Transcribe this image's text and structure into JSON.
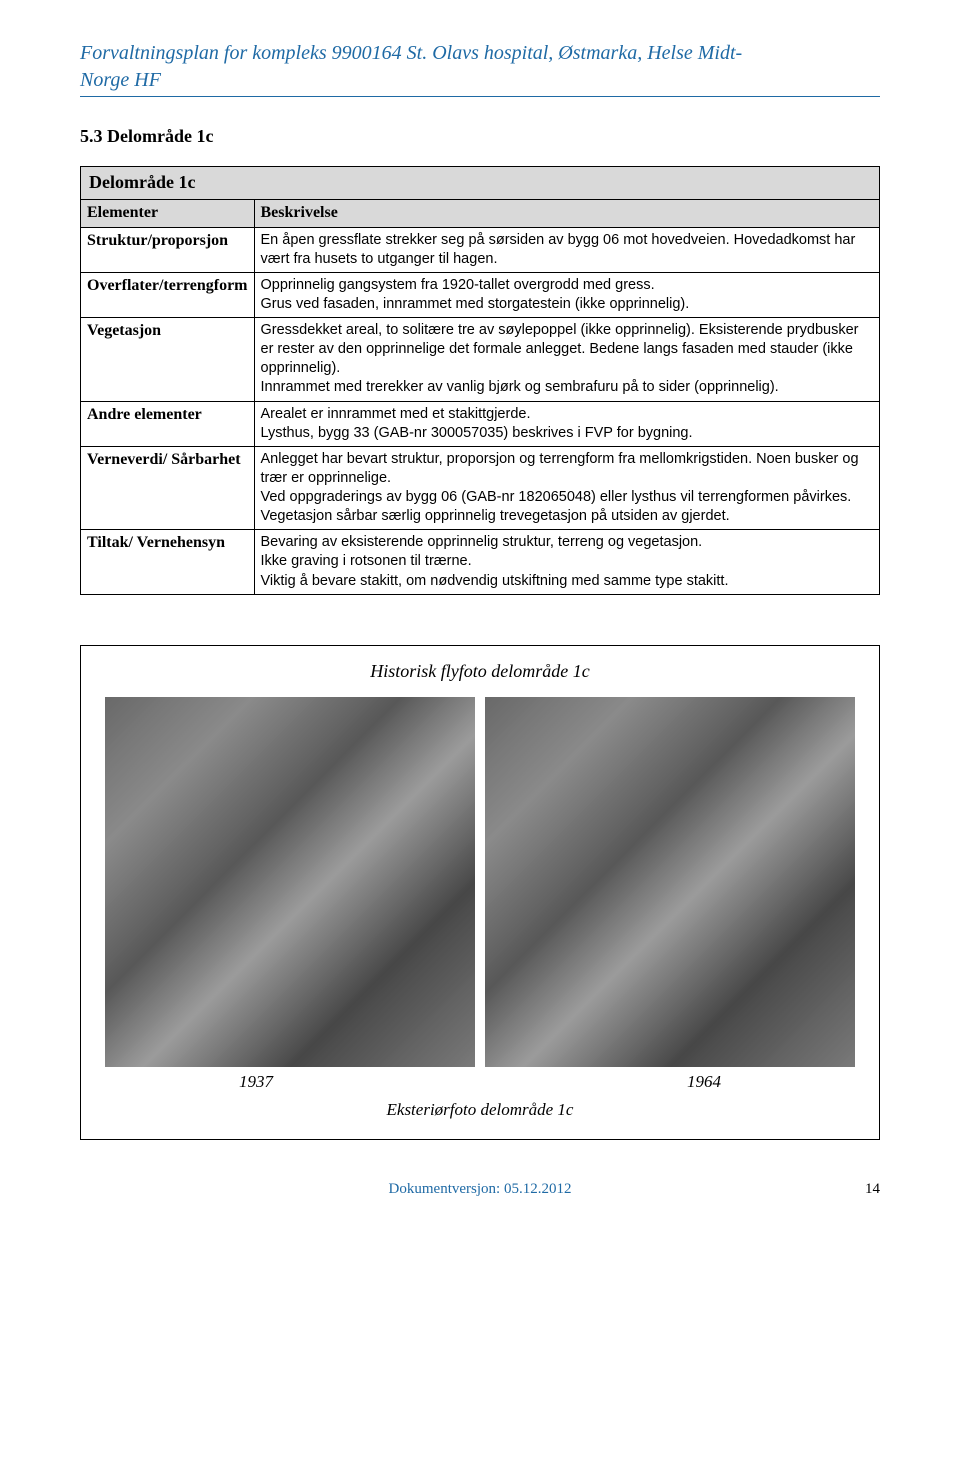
{
  "header": {
    "title_line1": "Forvaltningsplan for kompleks 9900164 St. Olavs hospital, Østmarka, Helse Midt-",
    "title_line2": "Norge HF"
  },
  "section": {
    "number_title": "5.3 Delområde 1c",
    "sub_title": "Delområde 1c"
  },
  "table": {
    "header_left": "Elementer",
    "header_right": "Beskrivelse",
    "rows": [
      {
        "label": "Struktur/proporsjon",
        "desc": "En åpen gressflate strekker seg på sørsiden av bygg 06 mot hovedveien. Hovedadkomst har vært fra husets to utganger til hagen."
      },
      {
        "label": "Overflater/terrengform",
        "desc": "Opprinnelig gangsystem fra 1920-tallet overgrodd med gress.\nGrus ved fasaden, innrammet med storgatestein (ikke opprinnelig)."
      },
      {
        "label": "Vegetasjon",
        "desc": "Gressdekket areal, to solitære tre av søylepoppel (ikke opprinnelig). Eksisterende prydbusker er rester av den opprinnelige det formale anlegget. Bedene langs fasaden med stauder (ikke opprinnelig).\nInnrammet med trerekker av vanlig bjørk og sembrafuru på to sider (opprinnelig)."
      },
      {
        "label": "Andre elementer",
        "desc": "Arealet er innrammet med et stakittgjerde.\nLysthus, bygg 33 (GAB-nr 300057035) beskrives i FVP for bygning."
      }
    ],
    "rows2": [
      {
        "label": "Verneverdi/ Sårbarhet",
        "desc": "Anlegget har bevart struktur, proporsjon og terrengform fra mellomkrigstiden. Noen busker og trær er opprinnelige.\nVed oppgraderings av bygg 06 (GAB-nr 182065048) eller lysthus vil terrengformen påvirkes. Vegetasjon sårbar særlig opprinnelig trevegetasjon på utsiden av gjerdet."
      },
      {
        "label": "Tiltak/ Vernehensyn",
        "desc": "Bevaring av eksisterende opprinnelig struktur, terreng og vegetasjon.\nIkke graving i rotsonen til trærne.\nViktig å bevare stakitt, om nødvendig utskiftning med samme type stakitt."
      }
    ]
  },
  "photos": {
    "title": "Historisk flyfoto delområde 1c",
    "left_year": "1937",
    "right_year": "1964",
    "caption2": "Eksteriørfoto delområde 1c"
  },
  "footer": {
    "version_label": "Dokumentversjon: 05.12.2012",
    "page_number": "14"
  },
  "colors": {
    "accent": "#1f6aa5",
    "table_header_bg": "#d9d9d9",
    "border": "#000000",
    "background": "#ffffff"
  }
}
